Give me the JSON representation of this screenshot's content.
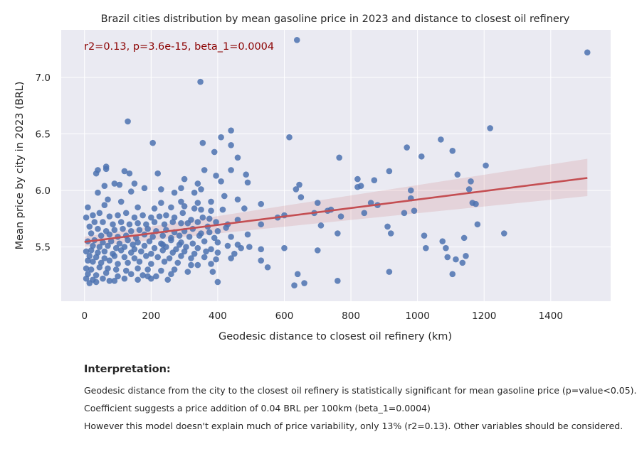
{
  "chart_data": {
    "type": "scatter",
    "title": "Brazil cities distribution by mean gasoline price in 2023 and distance to closest oil refinery",
    "xlabel": "Geodesic distance to closest oil refinery (km)",
    "ylabel": "Mean price by city in 2023 (BRL)",
    "xlim": [
      -70,
      1580
    ],
    "ylim": [
      5.02,
      7.42
    ],
    "xticks": [
      0,
      200,
      400,
      600,
      800,
      1000,
      1200,
      1400
    ],
    "xtick_labels": [
      "0",
      "200",
      "400",
      "600",
      "800",
      "1000",
      "1200",
      "1400"
    ],
    "yticks": [
      5.5,
      6.0,
      6.5,
      7.0
    ],
    "ytick_labels": [
      "5.5",
      "6.0",
      "6.5",
      "7.0"
    ],
    "grid": true,
    "stats_annotation": "r2=0.13, p=3.6e-15, beta_1=0.0004",
    "regression": {
      "x": [
        0,
        1510
      ],
      "y": [
        5.545,
        6.11
      ],
      "ci_lower": [
        5.5,
        5.95
      ],
      "ci_upper": [
        5.59,
        6.28
      ]
    },
    "colors": {
      "points": "#4c72b0",
      "regression": "#c44e52",
      "ci_band": "#c44e52",
      "background": "#eaeaf2",
      "grid": "#ffffff",
      "annotation": "#8b0000"
    },
    "points": [
      [
        638,
        7.33
      ],
      [
        1510,
        7.22
      ],
      [
        348,
        6.96
      ],
      [
        130,
        6.61
      ],
      [
        1218,
        6.55
      ],
      [
        440,
        6.53
      ],
      [
        410,
        6.47
      ],
      [
        615,
        6.47
      ],
      [
        1070,
        6.45
      ],
      [
        205,
        6.42
      ],
      [
        355,
        6.42
      ],
      [
        440,
        6.4
      ],
      [
        968,
        6.38
      ],
      [
        390,
        6.34
      ],
      [
        1105,
        6.35
      ],
      [
        1012,
        6.3
      ],
      [
        460,
        6.29
      ],
      [
        765,
        6.29
      ],
      [
        65,
        6.21
      ],
      [
        65,
        6.19
      ],
      [
        1205,
        6.22
      ],
      [
        40,
        6.18
      ],
      [
        35,
        6.15
      ],
      [
        120,
        6.17
      ],
      [
        135,
        6.15
      ],
      [
        220,
        6.15
      ],
      [
        360,
        6.18
      ],
      [
        440,
        6.18
      ],
      [
        485,
        6.14
      ],
      [
        395,
        6.13
      ],
      [
        1120,
        6.14
      ],
      [
        915,
        6.17
      ],
      [
        870,
        6.09
      ],
      [
        820,
        6.1
      ],
      [
        1160,
        6.08
      ],
      [
        90,
        6.06
      ],
      [
        105,
        6.05
      ],
      [
        150,
        6.06
      ],
      [
        300,
        6.1
      ],
      [
        340,
        6.06
      ],
      [
        410,
        6.08
      ],
      [
        490,
        6.07
      ],
      [
        645,
        6.05
      ],
      [
        820,
        6.03
      ],
      [
        980,
        6.0
      ],
      [
        1155,
        6.01
      ],
      [
        60,
        6.04
      ],
      [
        180,
        6.02
      ],
      [
        230,
        6.01
      ],
      [
        270,
        5.98
      ],
      [
        290,
        6.02
      ],
      [
        330,
        5.98
      ],
      [
        350,
        6.01
      ],
      [
        40,
        5.98
      ],
      [
        140,
        5.99
      ],
      [
        635,
        6.01
      ],
      [
        830,
        6.04
      ],
      [
        650,
        5.94
      ],
      [
        420,
        5.95
      ],
      [
        460,
        5.92
      ],
      [
        980,
        5.93
      ],
      [
        1165,
        5.89
      ],
      [
        1175,
        5.88
      ],
      [
        70,
        5.92
      ],
      [
        110,
        5.9
      ],
      [
        230,
        5.89
      ],
      [
        290,
        5.9
      ],
      [
        340,
        5.89
      ],
      [
        380,
        5.9
      ],
      [
        530,
        5.88
      ],
      [
        700,
        5.89
      ],
      [
        860,
        5.89
      ],
      [
        880,
        5.87
      ],
      [
        60,
        5.87
      ],
      [
        10,
        5.85
      ],
      [
        160,
        5.85
      ],
      [
        210,
        5.84
      ],
      [
        260,
        5.85
      ],
      [
        300,
        5.86
      ],
      [
        330,
        5.84
      ],
      [
        350,
        5.83
      ],
      [
        380,
        5.82
      ],
      [
        415,
        5.83
      ],
      [
        480,
        5.84
      ],
      [
        740,
        5.83
      ],
      [
        730,
        5.82
      ],
      [
        960,
        5.8
      ],
      [
        990,
        5.82
      ],
      [
        840,
        5.8
      ],
      [
        690,
        5.8
      ],
      [
        600,
        5.78
      ],
      [
        580,
        5.76
      ],
      [
        770,
        5.77
      ],
      [
        910,
        5.68
      ],
      [
        1180,
        5.7
      ],
      [
        710,
        5.69
      ],
      [
        530,
        5.7
      ],
      [
        25,
        5.78
      ],
      [
        45,
        5.8
      ],
      [
        75,
        5.77
      ],
      [
        100,
        5.78
      ],
      [
        125,
        5.8
      ],
      [
        150,
        5.76
      ],
      [
        175,
        5.78
      ],
      [
        200,
        5.76
      ],
      [
        225,
        5.77
      ],
      [
        245,
        5.78
      ],
      [
        270,
        5.76
      ],
      [
        295,
        5.8
      ],
      [
        320,
        5.74
      ],
      [
        355,
        5.76
      ],
      [
        375,
        5.75
      ],
      [
        395,
        5.72
      ],
      [
        430,
        5.7
      ],
      [
        460,
        5.74
      ],
      [
        5,
        5.76
      ],
      [
        30,
        5.72
      ],
      [
        55,
        5.72
      ],
      [
        85,
        5.7
      ],
      [
        110,
        5.72
      ],
      [
        135,
        5.7
      ],
      [
        160,
        5.71
      ],
      [
        185,
        5.7
      ],
      [
        210,
        5.72
      ],
      [
        240,
        5.7
      ],
      [
        265,
        5.72
      ],
      [
        290,
        5.71
      ],
      [
        310,
        5.71
      ],
      [
        340,
        5.72
      ],
      [
        370,
        5.68
      ],
      [
        425,
        5.67
      ],
      [
        15,
        5.68
      ],
      [
        40,
        5.66
      ],
      [
        65,
        5.64
      ],
      [
        90,
        5.65
      ],
      [
        115,
        5.66
      ],
      [
        140,
        5.64
      ],
      [
        165,
        5.65
      ],
      [
        190,
        5.66
      ],
      [
        215,
        5.64
      ],
      [
        245,
        5.65
      ],
      [
        270,
        5.63
      ],
      [
        300,
        5.64
      ],
      [
        325,
        5.66
      ],
      [
        350,
        5.62
      ],
      [
        375,
        5.63
      ],
      [
        400,
        5.64
      ],
      [
        20,
        5.62
      ],
      [
        50,
        5.6
      ],
      [
        75,
        5.61
      ],
      [
        100,
        5.59
      ],
      [
        125,
        5.6
      ],
      [
        155,
        5.58
      ],
      [
        180,
        5.61
      ],
      [
        205,
        5.59
      ],
      [
        235,
        5.6
      ],
      [
        260,
        5.58
      ],
      [
        285,
        5.6
      ],
      [
        315,
        5.59
      ],
      [
        345,
        5.6
      ],
      [
        390,
        5.58
      ],
      [
        440,
        5.59
      ],
      [
        490,
        5.61
      ],
      [
        760,
        5.62
      ],
      [
        920,
        5.62
      ],
      [
        1020,
        5.6
      ],
      [
        1075,
        5.55
      ],
      [
        1140,
        5.58
      ],
      [
        1260,
        5.62
      ],
      [
        10,
        5.55
      ],
      [
        30,
        5.56
      ],
      [
        55,
        5.54
      ],
      [
        80,
        5.55
      ],
      [
        105,
        5.53
      ],
      [
        130,
        5.56
      ],
      [
        160,
        5.54
      ],
      [
        195,
        5.55
      ],
      [
        230,
        5.53
      ],
      [
        260,
        5.56
      ],
      [
        290,
        5.54
      ],
      [
        325,
        5.53
      ],
      [
        360,
        5.55
      ],
      [
        400,
        5.54
      ],
      [
        460,
        5.52
      ],
      [
        25,
        5.51
      ],
      [
        45,
        5.5
      ],
      [
        70,
        5.51
      ],
      [
        95,
        5.49
      ],
      [
        120,
        5.5
      ],
      [
        150,
        5.48
      ],
      [
        180,
        5.51
      ],
      [
        210,
        5.49
      ],
      [
        245,
        5.5
      ],
      [
        275,
        5.48
      ],
      [
        305,
        5.5
      ],
      [
        340,
        5.49
      ],
      [
        380,
        5.48
      ],
      [
        430,
        5.51
      ],
      [
        470,
        5.49
      ],
      [
        495,
        5.5
      ],
      [
        600,
        5.49
      ],
      [
        700,
        5.47
      ],
      [
        1025,
        5.49
      ],
      [
        1085,
        5.49
      ],
      [
        5,
        5.46
      ],
      [
        20,
        5.47
      ],
      [
        40,
        5.45
      ],
      [
        60,
        5.46
      ],
      [
        85,
        5.44
      ],
      [
        110,
        5.47
      ],
      [
        140,
        5.45
      ],
      [
        170,
        5.46
      ],
      [
        200,
        5.44
      ],
      [
        235,
        5.47
      ],
      [
        265,
        5.45
      ],
      [
        300,
        5.46
      ],
      [
        330,
        5.44
      ],
      [
        365,
        5.46
      ],
      [
        400,
        5.45
      ],
      [
        450,
        5.44
      ],
      [
        530,
        5.48
      ],
      [
        15,
        5.42
      ],
      [
        35,
        5.41
      ],
      [
        60,
        5.4
      ],
      [
        90,
        5.42
      ],
      [
        120,
        5.41
      ],
      [
        150,
        5.4
      ],
      [
        185,
        5.42
      ],
      [
        220,
        5.41
      ],
      [
        255,
        5.4
      ],
      [
        290,
        5.42
      ],
      [
        320,
        5.4
      ],
      [
        360,
        5.41
      ],
      [
        395,
        5.39
      ],
      [
        440,
        5.4
      ],
      [
        1090,
        5.41
      ],
      [
        1115,
        5.39
      ],
      [
        1145,
        5.42
      ],
      [
        1135,
        5.36
      ],
      [
        10,
        5.38
      ],
      [
        25,
        5.37
      ],
      [
        50,
        5.36
      ],
      [
        75,
        5.38
      ],
      [
        100,
        5.35
      ],
      [
        130,
        5.36
      ],
      [
        165,
        5.37
      ],
      [
        200,
        5.35
      ],
      [
        240,
        5.37
      ],
      [
        280,
        5.36
      ],
      [
        320,
        5.34
      ],
      [
        340,
        5.34
      ],
      [
        380,
        5.35
      ],
      [
        530,
        5.38
      ],
      [
        550,
        5.32
      ],
      [
        5,
        5.31
      ],
      [
        20,
        5.3
      ],
      [
        45,
        5.32
      ],
      [
        70,
        5.31
      ],
      [
        95,
        5.3
      ],
      [
        125,
        5.29
      ],
      [
        160,
        5.31
      ],
      [
        190,
        5.3
      ],
      [
        230,
        5.29
      ],
      [
        270,
        5.3
      ],
      [
        385,
        5.28
      ],
      [
        640,
        5.26
      ],
      [
        915,
        5.28
      ],
      [
        1105,
        5.26
      ],
      [
        10,
        5.26
      ],
      [
        35,
        5.25
      ],
      [
        65,
        5.27
      ],
      [
        100,
        5.24
      ],
      [
        140,
        5.26
      ],
      [
        175,
        5.25
      ],
      [
        215,
        5.24
      ],
      [
        260,
        5.26
      ],
      [
        5,
        5.22
      ],
      [
        25,
        5.21
      ],
      [
        55,
        5.22
      ],
      [
        90,
        5.2
      ],
      [
        120,
        5.22
      ],
      [
        160,
        5.21
      ],
      [
        200,
        5.22
      ],
      [
        250,
        5.21
      ],
      [
        400,
        5.19
      ],
      [
        630,
        5.16
      ],
      [
        660,
        5.18
      ],
      [
        760,
        5.2
      ],
      [
        15,
        5.18
      ],
      [
        35,
        5.19
      ],
      [
        75,
        5.2
      ],
      [
        190,
        5.24
      ],
      [
        310,
        5.28
      ],
      [
        285,
        5.52
      ],
      [
        235,
        5.52
      ],
      [
        145,
        5.52
      ]
    ]
  },
  "interpretation": {
    "heading": "Interpretation:",
    "lines": [
      "Geodesic distance from the city to the closest oil refinery is statistically significant for mean gasoline price (p=value<0.05).",
      "Coefficient suggests a price addition of 0.04 BRL per 100km (beta_1=0.0004)",
      "However this model doesn't explain much of price variability, only 13% (r2=0.13). Other variables should be considered."
    ]
  }
}
